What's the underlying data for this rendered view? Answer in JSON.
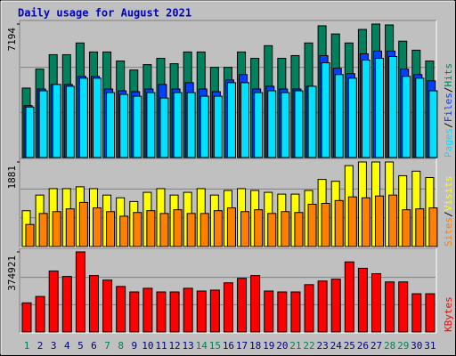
{
  "title": "Daily usage for August 2021",
  "legend_separator": "/",
  "chart_data": [
    {
      "type": "bar",
      "categories": [
        "1",
        "2",
        "3",
        "4",
        "5",
        "6",
        "7",
        "8",
        "9",
        "10",
        "11",
        "12",
        "13",
        "14",
        "15",
        "16",
        "17",
        "18",
        "19",
        "20",
        "21",
        "22",
        "23",
        "24",
        "25",
        "26",
        "27",
        "28",
        "29",
        "30",
        "31"
      ],
      "ylim": [
        0,
        7194
      ],
      "yticks": [
        7194
      ],
      "series": [
        {
          "name": "Hits",
          "color": "#00805c",
          "values": [
            3743,
            4764,
            5542,
            5542,
            6174,
            5688,
            5688,
            5201,
            4715,
            5007,
            5347,
            5056,
            5688,
            5688,
            4861,
            4861,
            5688,
            5347,
            6028,
            5347,
            5493,
            6174,
            7100,
            6660,
            6174,
            6903,
            7194,
            7146,
            6271,
            5785,
            5201
          ]
        },
        {
          "name": "Files",
          "color": "#0040ff",
          "values": [
            2800,
            3694,
            3937,
            3937,
            4375,
            4375,
            3694,
            3597,
            3548,
            3694,
            3937,
            3694,
            4034,
            3694,
            3548,
            4180,
            4471,
            3694,
            3840,
            3694,
            3694,
            3840,
            5493,
            4813,
            4521,
            5590,
            5736,
            5736,
            4764,
            4471,
            4132
          ]
        },
        {
          "name": "Pages",
          "color": "#00e0ff",
          "values": [
            2722,
            3597,
            3937,
            3840,
            4277,
            4277,
            3500,
            3402,
            3305,
            3500,
            3208,
            3500,
            3500,
            3305,
            3305,
            4034,
            4034,
            3500,
            3597,
            3500,
            3597,
            3840,
            5104,
            4472,
            4277,
            5250,
            5347,
            5444,
            4375,
            4277,
            3597
          ]
        }
      ]
    },
    {
      "type": "bar",
      "categories": [
        "1",
        "2",
        "3",
        "4",
        "5",
        "6",
        "7",
        "8",
        "9",
        "10",
        "11",
        "12",
        "13",
        "14",
        "15",
        "16",
        "17",
        "18",
        "19",
        "20",
        "21",
        "22",
        "23",
        "24",
        "25",
        "26",
        "27",
        "28",
        "29",
        "30",
        "31"
      ],
      "ylim": [
        0,
        1881
      ],
      "yticks": [
        1881
      ],
      "series": [
        {
          "name": "Visits",
          "color": "#ffff00",
          "values": [
            797,
            1145,
            1288,
            1288,
            1329,
            1288,
            1145,
            1084,
            1002,
            1206,
            1288,
            1145,
            1206,
            1288,
            1145,
            1247,
            1288,
            1247,
            1206,
            1166,
            1166,
            1247,
            1493,
            1452,
            1800,
            1881,
            1881,
            1881,
            1575,
            1677,
            1534
          ]
        },
        {
          "name": "Sites",
          "color": "#ff8000",
          "values": [
            491,
            736,
            777,
            838,
            982,
            859,
            777,
            675,
            757,
            798,
            736,
            818,
            736,
            736,
            798,
            859,
            777,
            818,
            736,
            777,
            757,
            941,
            961,
            1023,
            1104,
            1084,
            1125,
            1145,
            818,
            838,
            859
          ]
        }
      ]
    },
    {
      "type": "bar",
      "categories": [
        "1",
        "2",
        "3",
        "4",
        "5",
        "6",
        "7",
        "8",
        "9",
        "10",
        "11",
        "12",
        "13",
        "14",
        "15",
        "16",
        "17",
        "18",
        "19",
        "20",
        "21",
        "22",
        "23",
        "24",
        "25",
        "26",
        "27",
        "28",
        "29",
        "30",
        "31"
      ],
      "category_colors": [
        "#00805c",
        "#000080",
        "#000080",
        "#000080",
        "#000080",
        "#000080",
        "#00805c",
        "#00805c",
        "#000080",
        "#000080",
        "#000080",
        "#000080",
        "#000080",
        "#00805c",
        "#00805c",
        "#000080",
        "#000080",
        "#000080",
        "#000080",
        "#000080",
        "#00805c",
        "#00805c",
        "#000080",
        "#000080",
        "#000080",
        "#000080",
        "#000080",
        "#00805c",
        "#00805c",
        "#000080",
        "#000080"
      ],
      "ylim": [
        0,
        374921
      ],
      "yticks": [
        374921
      ],
      "series": [
        {
          "name": "KBytes",
          "color": "#ff0000",
          "values": [
            136320,
            166140,
            285420,
            259860,
            374921,
            264120,
            242820,
            213000,
            187440,
            204480,
            187440,
            187440,
            204480,
            191700,
            195960,
            230040,
            251340,
            264120,
            191700,
            187440,
            187440,
            221520,
            238560,
            247080,
            328020,
            298200,
            272640,
            234300,
            234300,
            178920,
            178920
          ]
        }
      ]
    }
  ]
}
